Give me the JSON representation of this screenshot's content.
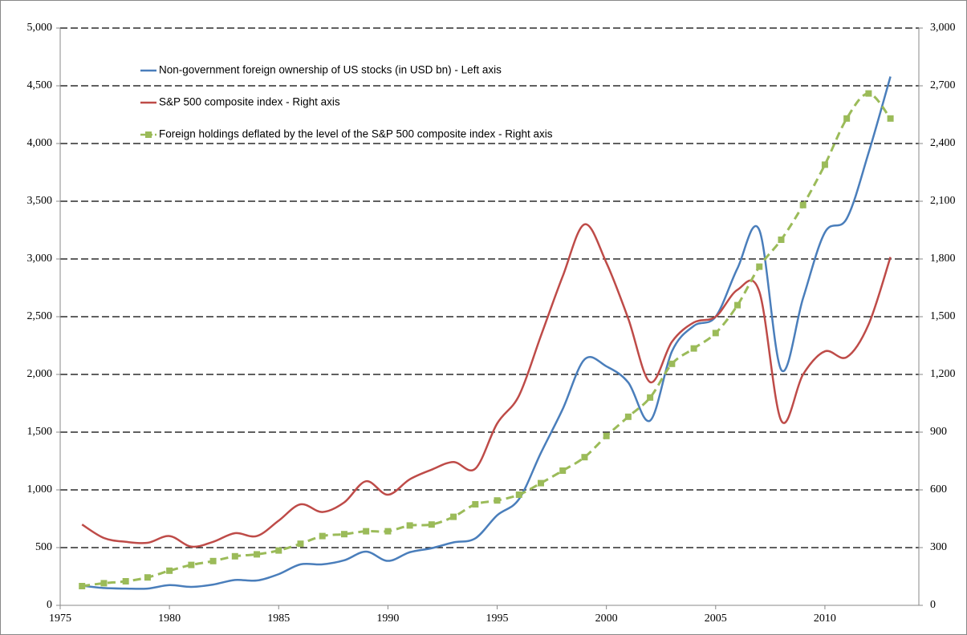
{
  "chart_data": {
    "type": "line",
    "x": [
      1976,
      1977,
      1978,
      1979,
      1980,
      1981,
      1982,
      1983,
      1984,
      1985,
      1986,
      1987,
      1988,
      1989,
      1990,
      1991,
      1992,
      1993,
      1994,
      1995,
      1996,
      1997,
      1998,
      1999,
      2000,
      2001,
      2002,
      2003,
      2004,
      2005,
      2006,
      2007,
      2008,
      2009,
      2010,
      2011,
      2012,
      2013
    ],
    "xlim": [
      1975,
      2014.3
    ],
    "xticks": [
      1975,
      1980,
      1985,
      1990,
      1995,
      2000,
      2005,
      2010
    ],
    "ylim": [
      0,
      5000
    ],
    "yticks": [
      0,
      500,
      {
        "value": 1000,
        "label": "1,000"
      },
      {
        "value": 1500,
        "label": "1,500"
      },
      {
        "value": 2000,
        "label": "2,000"
      },
      {
        "value": 2500,
        "label": "2,500"
      },
      {
        "value": 3000,
        "label": "3,000"
      },
      {
        "value": 3500,
        "label": "3,500"
      },
      {
        "value": 4000,
        "label": "4,000"
      },
      {
        "value": 4500,
        "label": "4,500"
      },
      {
        "value": 5000,
        "label": "5,000"
      }
    ],
    "y2lim": [
      0,
      3000
    ],
    "y2ticks": [
      0,
      300,
      600,
      900,
      {
        "value": 1200,
        "label": "1,200"
      },
      {
        "value": 1500,
        "label": "1,500"
      },
      {
        "value": 1800,
        "label": "1,800"
      },
      {
        "value": 2100,
        "label": "2,100"
      },
      {
        "value": 2400,
        "label": "2,400"
      },
      {
        "value": 2700,
        "label": "2,700"
      },
      {
        "value": 3000,
        "label": "3,000"
      }
    ],
    "grid": true,
    "series": [
      {
        "name": "Non-government foreign ownership of US stocks (in USD bn) - Left axis",
        "color": "#4a7ebb",
        "dashed": false,
        "marker": false,
        "values": [
          170,
          150,
          145,
          145,
          175,
          160,
          180,
          220,
          215,
          270,
          355,
          355,
          390,
          465,
          385,
          460,
          495,
          545,
          580,
          780,
          920,
          1320,
          1700,
          2130,
          2070,
          1930,
          1600,
          2200,
          2420,
          2500,
          2920,
          3250,
          2040,
          2660,
          3230,
          3350,
          3920,
          4580
        ]
      },
      {
        "name": "S&P 500 composite index - Right axis",
        "color": "#be4b48",
        "axis": "y2",
        "dashed": false,
        "marker": false,
        "values": [
          420,
          350,
          330,
          325,
          360,
          305,
          330,
          375,
          360,
          440,
          525,
          485,
          535,
          645,
          575,
          655,
          705,
          745,
          710,
          945,
          1090,
          1400,
          1710,
          1980,
          1780,
          1490,
          1160,
          1370,
          1470,
          1500,
          1640,
          1630,
          960,
          1200,
          1320,
          1290,
          1460,
          1810
        ]
      },
      {
        "name": "Foreign holdings deflated by the level of the S&P 500 composite index - Right axis",
        "color": "#9bbb59",
        "axis": "y2",
        "dashed": true,
        "marker": true,
        "values": [
          100,
          115,
          125,
          145,
          180,
          210,
          230,
          255,
          265,
          285,
          320,
          360,
          370,
          385,
          385,
          415,
          420,
          460,
          525,
          545,
          575,
          635,
          700,
          770,
          880,
          980,
          1080,
          1255,
          1335,
          1415,
          1560,
          1760,
          1900,
          2080,
          2290,
          2530,
          2660,
          2530
        ]
      }
    ]
  }
}
